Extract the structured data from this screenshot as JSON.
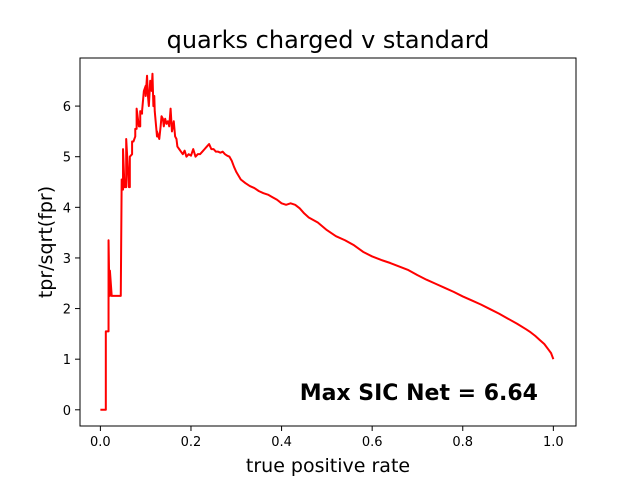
{
  "chart_data": {
    "type": "line",
    "title": "quarks charged v standard",
    "xlabel": "true positive rate",
    "ylabel": "tpr/sqrt(fpr)",
    "xlim": [
      -0.045,
      1.05
    ],
    "ylim": [
      -0.32,
      6.95
    ],
    "xticks": [
      0.0,
      0.2,
      0.4,
      0.6,
      0.8,
      1.0
    ],
    "xtick_labels": [
      "0.0",
      "0.2",
      "0.4",
      "0.6",
      "0.8",
      "1.0"
    ],
    "yticks": [
      0,
      1,
      2,
      3,
      4,
      5,
      6
    ],
    "ytick_labels": [
      "0",
      "1",
      "2",
      "3",
      "4",
      "5",
      "6"
    ],
    "grid": false,
    "annotation": "Max SIC Net = 6.64",
    "series": [
      {
        "color": "#ff0000",
        "x": [
          0.0,
          0.012,
          0.012,
          0.018,
          0.018,
          0.02,
          0.021,
          0.021,
          0.025,
          0.025,
          0.03,
          0.045,
          0.047,
          0.047,
          0.05,
          0.05,
          0.053,
          0.053,
          0.057,
          0.057,
          0.063,
          0.065,
          0.065,
          0.07,
          0.07,
          0.073,
          0.077,
          0.077,
          0.08,
          0.08,
          0.085,
          0.088,
          0.088,
          0.092,
          0.092,
          0.096,
          0.1,
          0.1,
          0.103,
          0.105,
          0.107,
          0.11,
          0.113,
          0.115,
          0.117,
          0.119,
          0.12,
          0.122,
          0.125,
          0.125,
          0.13,
          0.133,
          0.135,
          0.138,
          0.14,
          0.143,
          0.146,
          0.149,
          0.152,
          0.155,
          0.158,
          0.162,
          0.165,
          0.168,
          0.17,
          0.174,
          0.178,
          0.182,
          0.186,
          0.19,
          0.195,
          0.2,
          0.205,
          0.21,
          0.215,
          0.22,
          0.225,
          0.23,
          0.235,
          0.24,
          0.245,
          0.25,
          0.255,
          0.26,
          0.265,
          0.27,
          0.275,
          0.28,
          0.285,
          0.29,
          0.295,
          0.3,
          0.31,
          0.32,
          0.33,
          0.34,
          0.35,
          0.36,
          0.37,
          0.38,
          0.39,
          0.4,
          0.41,
          0.42,
          0.43,
          0.44,
          0.45,
          0.46,
          0.47,
          0.48,
          0.5,
          0.52,
          0.54,
          0.56,
          0.58,
          0.6,
          0.62,
          0.64,
          0.66,
          0.68,
          0.7,
          0.72,
          0.74,
          0.76,
          0.78,
          0.8,
          0.82,
          0.84,
          0.86,
          0.88,
          0.9,
          0.92,
          0.94,
          0.95,
          0.96,
          0.97,
          0.98,
          0.99,
          0.995,
          1.0
        ],
        "y": [
          0.0,
          0.0,
          1.55,
          1.55,
          3.35,
          2.25,
          2.25,
          2.75,
          2.25,
          2.25,
          2.25,
          2.25,
          4.55,
          4.35,
          4.35,
          5.15,
          4.45,
          4.4,
          4.4,
          5.35,
          4.4,
          4.4,
          5.0,
          5.05,
          5.3,
          5.3,
          5.4,
          5.55,
          5.55,
          5.95,
          5.6,
          5.6,
          5.9,
          5.85,
          5.9,
          6.3,
          6.4,
          6.2,
          6.6,
          6.2,
          6.0,
          6.5,
          6.3,
          6.64,
          6.0,
          6.2,
          5.9,
          5.7,
          5.4,
          5.5,
          5.35,
          5.6,
          5.8,
          5.75,
          5.6,
          5.75,
          5.65,
          5.7,
          5.6,
          5.95,
          5.5,
          5.7,
          5.4,
          5.35,
          5.2,
          5.15,
          5.1,
          5.05,
          5.12,
          5.0,
          5.05,
          5.02,
          5.15,
          5.0,
          5.05,
          5.05,
          5.1,
          5.15,
          5.2,
          5.25,
          5.15,
          5.15,
          5.1,
          5.1,
          5.08,
          5.1,
          5.05,
          5.02,
          5.0,
          4.92,
          4.8,
          4.7,
          4.55,
          4.48,
          4.42,
          4.38,
          4.32,
          4.28,
          4.25,
          4.2,
          4.15,
          4.08,
          4.05,
          4.08,
          4.05,
          3.98,
          3.88,
          3.8,
          3.75,
          3.7,
          3.55,
          3.43,
          3.35,
          3.25,
          3.12,
          3.03,
          2.96,
          2.9,
          2.83,
          2.76,
          2.66,
          2.57,
          2.49,
          2.41,
          2.33,
          2.24,
          2.16,
          2.08,
          1.99,
          1.9,
          1.8,
          1.7,
          1.59,
          1.53,
          1.46,
          1.38,
          1.3,
          1.18,
          1.12,
          1.0
        ]
      }
    ]
  }
}
